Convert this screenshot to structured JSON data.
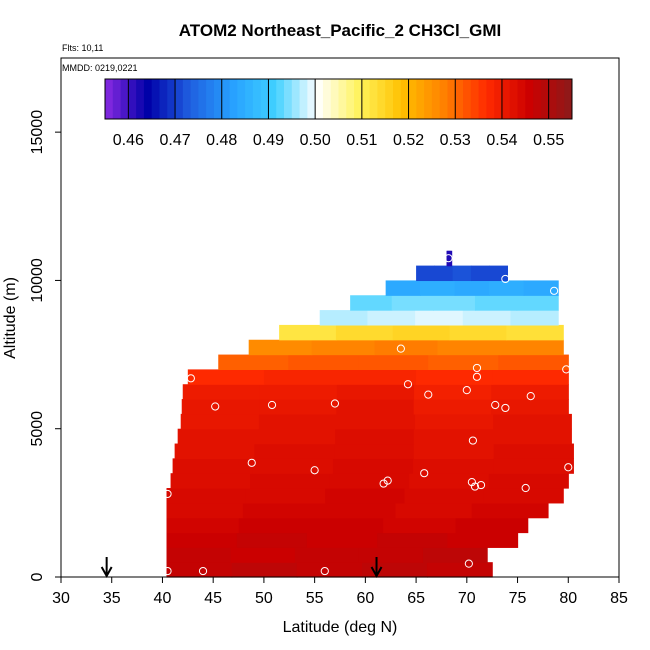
{
  "chart_data": {
    "type": "heatmap",
    "title": "ATOM2 Northeast_Pacific_2 CH3Cl_GMI",
    "flights_note": "Flts: 10,11",
    "date_note": "MMDD: 0219,0221",
    "xlabel": "Latitude (deg N)",
    "ylabel": "Altitude (m)",
    "xlim": [
      30,
      85
    ],
    "ylim": [
      0,
      17500
    ],
    "x_ticks": [
      30,
      35,
      40,
      45,
      50,
      55,
      60,
      65,
      70,
      75,
      80,
      85
    ],
    "y_ticks": [
      0,
      5000,
      10000,
      15000
    ],
    "colorbar": {
      "ticks": [
        0.46,
        0.47,
        0.48,
        0.49,
        0.5,
        0.51,
        0.52,
        0.53,
        0.54,
        0.55
      ],
      "tick_labels": [
        "0.46",
        "0.47",
        "0.48",
        "0.49",
        "0.50",
        "0.51",
        "0.52",
        "0.53",
        "0.54",
        "0.55"
      ],
      "range": [
        0.455,
        0.555
      ],
      "position": "top"
    },
    "colorscale": [
      "#8a2be2",
      "#0000a8",
      "#1f5fe0",
      "#27a0ff",
      "#3fd0ff",
      "#ffffff",
      "#fff35a",
      "#ffc000",
      "#ff7f00",
      "#ff2a00",
      "#cc0000",
      "#8b1a1a"
    ],
    "band_height_m": 500,
    "bands": [
      {
        "alt": 0,
        "lat_min": 40.4,
        "lat_max": 72.5,
        "values": [
          0.547,
          0.548,
          0.547,
          0.548,
          0.547
        ]
      },
      {
        "alt": 500,
        "lat_min": 40.4,
        "lat_max": 72.0,
        "values": [
          0.547,
          0.546,
          0.547,
          0.547,
          0.548
        ]
      },
      {
        "alt": 1000,
        "lat_min": 40.4,
        "lat_max": 75.0,
        "values": [
          0.546,
          0.547,
          0.546,
          0.547,
          0.546
        ]
      },
      {
        "alt": 1500,
        "lat_min": 40.4,
        "lat_max": 76.0,
        "values": [
          0.545,
          0.546,
          0.546,
          0.545,
          0.546
        ]
      },
      {
        "alt": 2000,
        "lat_min": 40.4,
        "lat_max": 78.0,
        "values": [
          0.544,
          0.545,
          0.545,
          0.544,
          0.545
        ]
      },
      {
        "alt": 2500,
        "lat_min": 40.4,
        "lat_max": 79.5,
        "values": [
          0.544,
          0.544,
          0.545,
          0.544,
          0.544
        ]
      },
      {
        "alt": 3000,
        "lat_min": 40.8,
        "lat_max": 80.0,
        "values": [
          0.543,
          0.544,
          0.544,
          0.543,
          0.544
        ]
      },
      {
        "alt": 3500,
        "lat_min": 41.0,
        "lat_max": 80.5,
        "values": [
          0.543,
          0.543,
          0.544,
          0.543,
          0.543
        ]
      },
      {
        "alt": 4000,
        "lat_min": 41.2,
        "lat_max": 80.5,
        "values": [
          0.542,
          0.543,
          0.543,
          0.542,
          0.543
        ]
      },
      {
        "alt": 4500,
        "lat_min": 41.5,
        "lat_max": 80.3,
        "values": [
          0.542,
          0.542,
          0.543,
          0.542,
          0.542
        ]
      },
      {
        "alt": 5000,
        "lat_min": 41.8,
        "lat_max": 80.3,
        "values": [
          0.541,
          0.542,
          0.542,
          0.541,
          0.542
        ]
      },
      {
        "alt": 5500,
        "lat_min": 41.9,
        "lat_max": 80.0,
        "values": [
          0.541,
          0.541,
          0.542,
          0.54,
          0.541
        ]
      },
      {
        "alt": 6000,
        "lat_min": 42.0,
        "lat_max": 80.0,
        "values": [
          0.54,
          0.54,
          0.541,
          0.539,
          0.54
        ]
      },
      {
        "alt": 6500,
        "lat_min": 42.5,
        "lat_max": 80.0,
        "values": [
          0.537,
          0.538,
          0.538,
          0.537,
          0.537
        ]
      },
      {
        "alt": 7000,
        "lat_min": 45.5,
        "lat_max": 80.0,
        "values": [
          0.531,
          0.532,
          0.532,
          0.531,
          0.532
        ]
      },
      {
        "alt": 7500,
        "lat_min": 48.5,
        "lat_max": 79.5,
        "values": [
          0.526,
          0.527,
          0.528,
          0.527,
          0.527
        ]
      },
      {
        "alt": 8000,
        "lat_min": 51.5,
        "lat_max": 79.5,
        "values": [
          0.512,
          0.514,
          0.515,
          0.514,
          0.513
        ]
      },
      {
        "alt": 8500,
        "lat_min": 55.5,
        "lat_max": 79.0,
        "values": [
          0.497,
          0.498,
          0.499,
          0.498,
          0.497
        ]
      },
      {
        "alt": 9000,
        "lat_min": 58.5,
        "lat_max": 79.0,
        "values": [
          0.493,
          0.494,
          0.494,
          0.493,
          0.493
        ]
      },
      {
        "alt": 9500,
        "lat_min": 62.0,
        "lat_max": 79.0,
        "values": [
          0.484,
          0.485,
          0.484,
          0.485,
          0.484
        ]
      },
      {
        "alt": 10000,
        "lat_min": 65.0,
        "lat_max": 74.0,
        "values": [
          0.471,
          0.471,
          0.472,
          0.471,
          0.471
        ]
      },
      {
        "alt": 10500,
        "lat_min": 68.0,
        "lat_max": 68.5,
        "values": [
          0.462,
          0.462,
          0.462,
          0.462,
          0.462
        ]
      }
    ],
    "observations": [
      {
        "lat": 40.5,
        "alt": 200
      },
      {
        "lat": 44.0,
        "alt": 200
      },
      {
        "lat": 56.0,
        "alt": 200
      },
      {
        "lat": 70.2,
        "alt": 450
      },
      {
        "lat": 40.5,
        "alt": 2800
      },
      {
        "lat": 48.8,
        "alt": 3850
      },
      {
        "lat": 55.0,
        "alt": 3600
      },
      {
        "lat": 61.8,
        "alt": 3150
      },
      {
        "lat": 62.2,
        "alt": 3250
      },
      {
        "lat": 65.8,
        "alt": 3500
      },
      {
        "lat": 70.5,
        "alt": 3200
      },
      {
        "lat": 70.8,
        "alt": 3050
      },
      {
        "lat": 71.4,
        "alt": 3100
      },
      {
        "lat": 75.8,
        "alt": 3000
      },
      {
        "lat": 80.0,
        "alt": 3700
      },
      {
        "lat": 70.6,
        "alt": 4600
      },
      {
        "lat": 45.2,
        "alt": 5750
      },
      {
        "lat": 50.8,
        "alt": 5800
      },
      {
        "lat": 57.0,
        "alt": 5850
      },
      {
        "lat": 66.2,
        "alt": 6150
      },
      {
        "lat": 72.8,
        "alt": 5800
      },
      {
        "lat": 73.8,
        "alt": 5700
      },
      {
        "lat": 76.3,
        "alt": 6100
      },
      {
        "lat": 42.8,
        "alt": 6700
      },
      {
        "lat": 64.2,
        "alt": 6500
      },
      {
        "lat": 70.0,
        "alt": 6300
      },
      {
        "lat": 71.0,
        "alt": 6750
      },
      {
        "lat": 71.0,
        "alt": 7050
      },
      {
        "lat": 79.8,
        "alt": 7000
      },
      {
        "lat": 63.5,
        "alt": 7700
      },
      {
        "lat": 73.8,
        "alt": 10050
      },
      {
        "lat": 78.6,
        "alt": 9650
      },
      {
        "lat": 68.2,
        "alt": 10750
      }
    ],
    "flight_markers_lat": [
      34.5,
      61.1
    ]
  }
}
